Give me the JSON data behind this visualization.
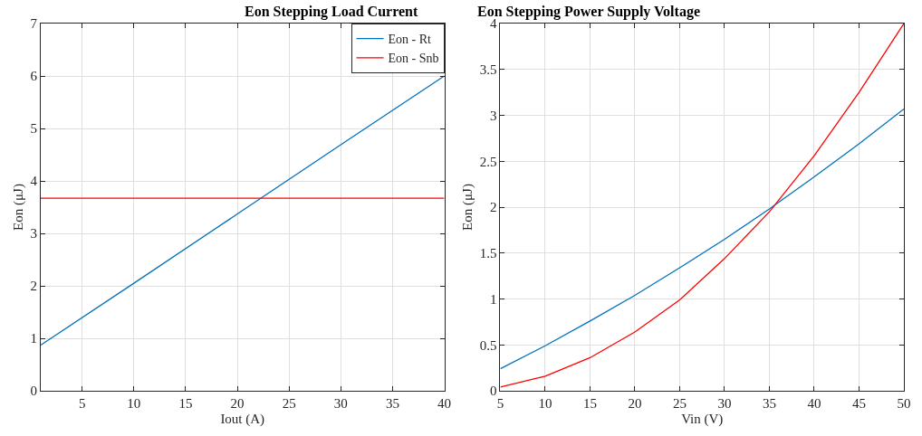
{
  "chart_data": [
    {
      "type": "line",
      "title": "Eon Stepping Load Current",
      "xlabel": "Iout (A)",
      "ylabel": "Eon (μJ)",
      "x": [
        1,
        10,
        20,
        30,
        40
      ],
      "series": [
        {
          "name": "Eon - Rt",
          "color": "#0072bd",
          "values": [
            0.87,
            2.05,
            3.37,
            4.69,
            6.0
          ]
        },
        {
          "name": "Eon - Snb",
          "color": "#ff0000",
          "values": [
            3.67,
            3.67,
            3.67,
            3.67,
            3.67
          ]
        }
      ],
      "xlim": [
        1,
        40
      ],
      "xticks": [
        5,
        10,
        15,
        20,
        25,
        30,
        35,
        40
      ],
      "ylim": [
        0,
        7
      ],
      "yticks": [
        0,
        1,
        2,
        3,
        4,
        5,
        6,
        7
      ],
      "grid": true,
      "legend": "top right",
      "marker": "none",
      "line_style": "solid"
    },
    {
      "type": "line",
      "title": "Eon Stepping Power Supply Voltage",
      "xlabel": "Vin (V)",
      "ylabel": "Eon (μJ)",
      "x": [
        5,
        10,
        15,
        20,
        25,
        30,
        35,
        40,
        45,
        50
      ],
      "series": [
        {
          "color": "#0072bd",
          "values": [
            0.24,
            0.49,
            0.76,
            1.04,
            1.34,
            1.65,
            1.98,
            2.33,
            2.69,
            3.07
          ]
        },
        {
          "color": "#ff0000",
          "values": [
            0.04,
            0.16,
            0.36,
            0.64,
            0.99,
            1.44,
            1.95,
            2.56,
            3.25,
            4.0
          ]
        }
      ],
      "xlim": [
        5,
        50
      ],
      "xticks": [
        5,
        10,
        15,
        20,
        25,
        30,
        35,
        40,
        45,
        50
      ],
      "ylim": [
        0,
        4
      ],
      "yticks": [
        0,
        0.5,
        1,
        1.5,
        2,
        2.5,
        3,
        3.5,
        4
      ],
      "grid": true,
      "legend": false,
      "marker": "none",
      "line_style": "solid"
    }
  ]
}
